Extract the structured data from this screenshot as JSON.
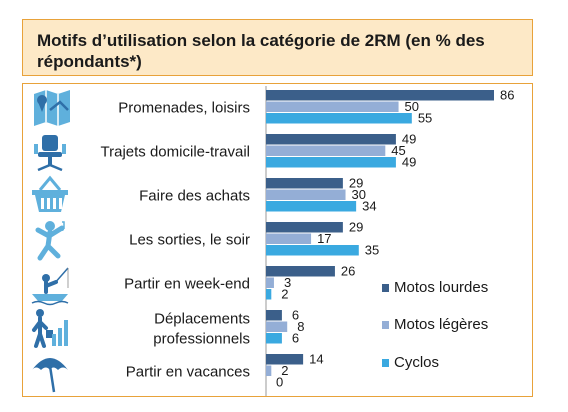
{
  "title": "Motifs d’utilisation selon la catégorie de 2RM (en % des répondants*)",
  "icons": [
    "map-icon",
    "office-chair-icon",
    "shopping-basket-icon",
    "dancing-person-icon",
    "fishing-person-icon",
    "business-growth-icon",
    "beach-umbrella-icon"
  ],
  "colors": {
    "Motos lourdes": "#3b5f8a",
    "Motos légères": "#94aed6",
    "Cyclos": "#3aa9e0",
    "frame": "#e8a23a",
    "title_bg": "#fde9c7"
  },
  "chart_data": {
    "type": "bar",
    "orientation": "horizontal",
    "categories": [
      "Promenades, loisirs",
      "Trajets domicile-travail",
      "Faire des achats",
      "Les sorties, le soir",
      "Partir en week-end",
      "Déplacements professionnels",
      "Partir en vacances"
    ],
    "series": [
      {
        "name": "Motos lourdes",
        "values": [
          86,
          49,
          29,
          29,
          26,
          6,
          14
        ]
      },
      {
        "name": "Motos légères",
        "values": [
          50,
          45,
          30,
          17,
          3,
          8,
          2
        ]
      },
      {
        "name": "Cyclos",
        "values": [
          55,
          49,
          34,
          35,
          2,
          6,
          0
        ]
      }
    ],
    "xlim": [
      0,
      100
    ],
    "legend": "bottom-right",
    "grid": false
  }
}
